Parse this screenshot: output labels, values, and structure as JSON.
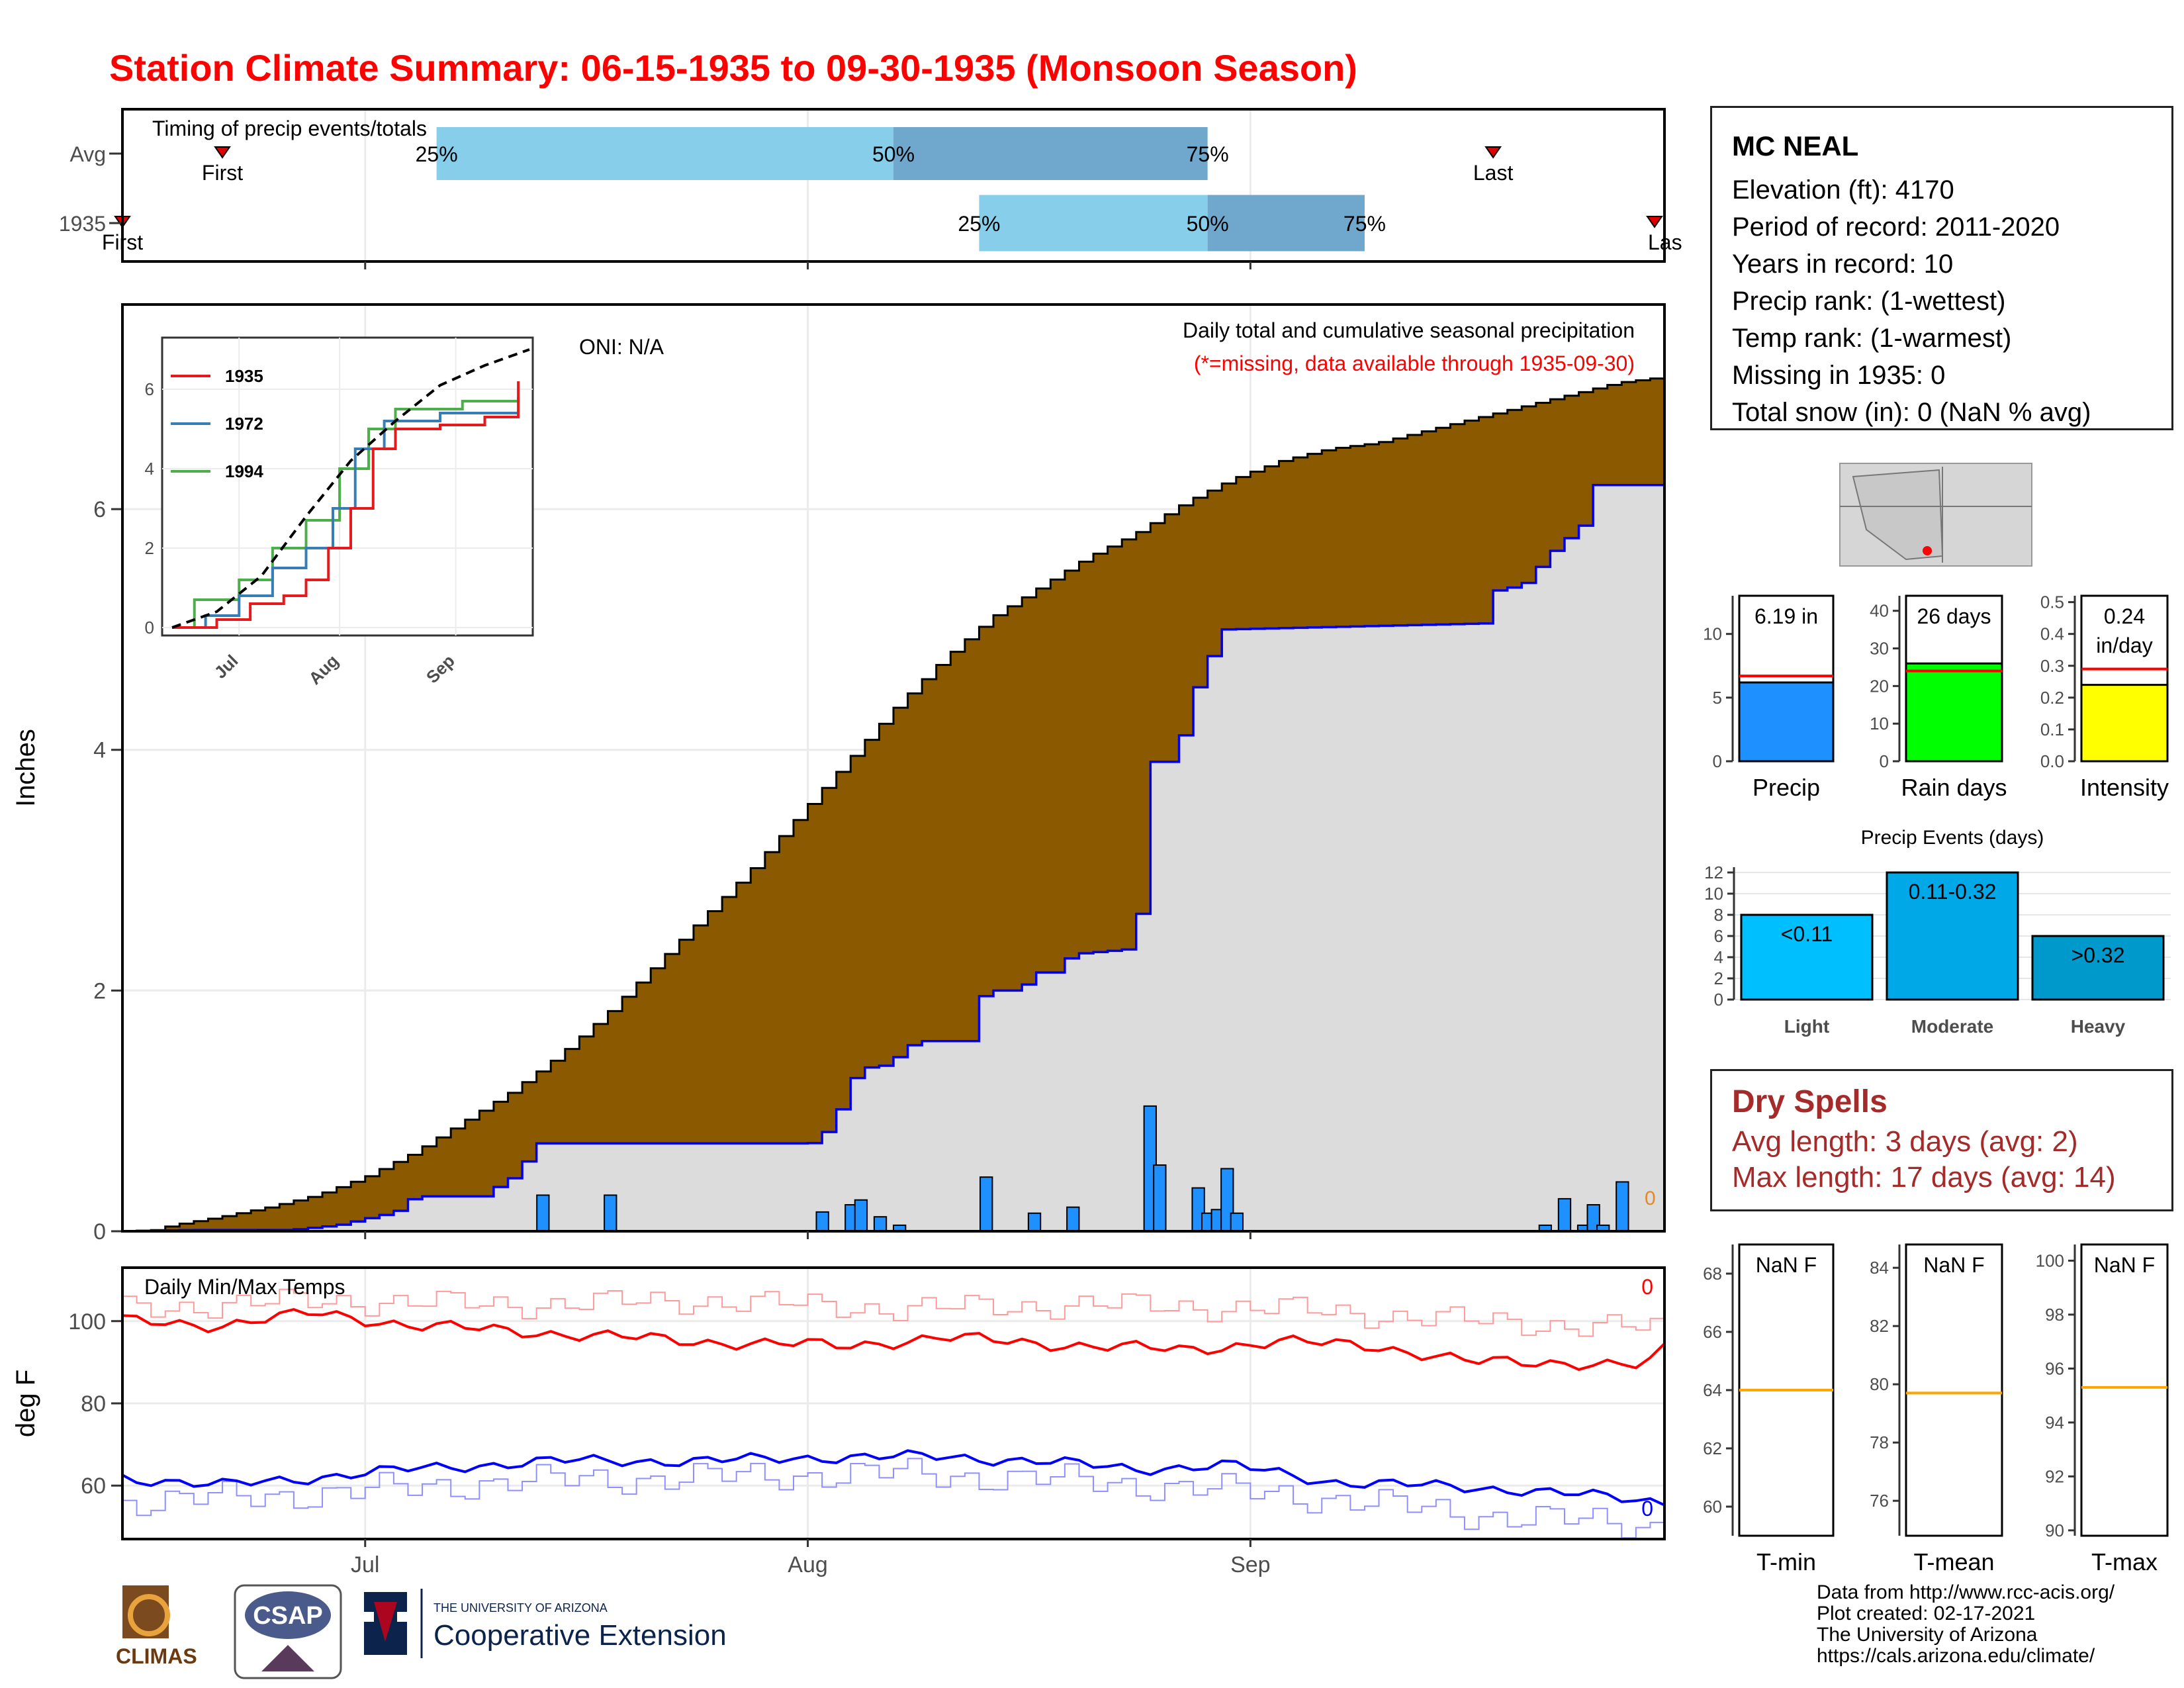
{
  "title": "Station Climate Summary: 06-15-1935 to 09-30-1935 (Monsoon Season)",
  "station": {
    "name": "MC NEAL",
    "lines": [
      "Elevation (ft): 4170",
      "Period of record: 2011-2020",
      "Years in record: 10",
      "Precip rank:  (1-wettest)",
      "Temp rank:  (1-warmest)",
      "Missing in 1935: 0",
      "Total snow (in): 0 (NaN % avg)"
    ]
  },
  "dry_spells": {
    "title": "Dry Spells",
    "avg_line": "Avg length: 3 days (avg: 2)",
    "max_line": "Max length: 17 days (avg: 14)"
  },
  "credits": [
    "Data from http://www.rcc-acis.org/",
    "Plot created: 02-17-2021",
    "The University of Arizona",
    "https://cals.arizona.edu/climate/"
  ],
  "logos": {
    "climas": "CLIMAS",
    "csap": "CSAP",
    "ua_small": "THE UNIVERSITY OF ARIZONA",
    "ua_big": "Cooperative Extension"
  },
  "colors": {
    "title": "#ff0000",
    "cumulative_avg": "#8b5a00",
    "cumulative_year": "#dcdcdc",
    "daily_bar": "#1e90ff",
    "quartile_light": "#87ceeb",
    "quartile_dark": "#6fa8cc",
    "tmax": "#ff0000",
    "tmin": "#0000ff",
    "dry_text": "#a52a2a"
  },
  "chart_data": [
    {
      "type": "timeline",
      "panel": "timing",
      "title": "Timing of precip events/totals",
      "rows": [
        {
          "label": "Avg",
          "first": "06-21",
          "last": "09-18",
          "p25": "07-06",
          "p50": "08-07",
          "p75": "08-29"
        },
        {
          "label": "1935",
          "first": "06-14",
          "last": "09-30",
          "p25": "08-13",
          "p50": "08-29",
          "p75": "09-09"
        }
      ],
      "marker_labels": {
        "first": "First",
        "last": "Last",
        "last_clipped": "Las",
        "p25": "25%",
        "p50": "50%",
        "p75": "75%"
      },
      "xlim": [
        "06-15",
        "09-30"
      ]
    },
    {
      "type": "area",
      "panel": "precip",
      "title": "Daily total and cumulative seasonal precipitation",
      "subtitle": "(*=missing, data available through 1935-09-30)",
      "annotation": "ONI: N/A",
      "ylabel": "Inches",
      "ylim": [
        0,
        7.7
      ],
      "yticks": [
        0,
        2,
        4,
        6
      ],
      "xticks": [
        "Jul",
        "Aug",
        "Sep"
      ],
      "xtick_dates": [
        "07-01",
        "08-01",
        "09-01"
      ],
      "avg_cumulative_knots": [
        [
          0,
          0
        ],
        [
          3,
          0.01
        ],
        [
          5,
          0.05
        ],
        [
          10,
          0.12
        ],
        [
          15,
          0.2
        ],
        [
          20,
          0.3
        ],
        [
          25,
          0.45
        ],
        [
          30,
          0.65
        ],
        [
          35,
          0.9
        ],
        [
          40,
          1.15
        ],
        [
          45,
          1.45
        ],
        [
          50,
          1.8
        ],
        [
          55,
          2.2
        ],
        [
          60,
          2.6
        ],
        [
          65,
          3.0
        ],
        [
          70,
          3.45
        ],
        [
          75,
          3.9
        ],
        [
          80,
          4.35
        ],
        [
          85,
          4.75
        ],
        [
          90,
          5.1
        ],
        [
          95,
          5.35
        ],
        [
          100,
          5.6
        ],
        [
          105,
          5.8
        ],
        [
          110,
          6.05
        ],
        [
          115,
          6.25
        ],
        [
          120,
          6.4
        ],
        [
          125,
          6.5
        ],
        [
          130,
          6.55
        ],
        [
          135,
          6.65
        ],
        [
          140,
          6.75
        ],
        [
          145,
          6.85
        ],
        [
          150,
          6.95
        ],
        [
          155,
          7.05
        ],
        [
          160,
          7.1
        ]
      ],
      "year_cumulative_knots": [
        [
          0,
          0
        ],
        [
          6,
          0.01
        ],
        [
          17,
          0.01
        ],
        [
          22,
          0.05
        ],
        [
          28,
          0.16
        ],
        [
          30,
          0.29
        ],
        [
          38,
          0.29
        ],
        [
          39,
          0.44
        ],
        [
          41,
          0.44
        ],
        [
          42,
          0.73
        ],
        [
          71,
          0.73
        ],
        [
          72,
          0.75
        ],
        [
          74,
          1.0
        ],
        [
          76,
          1.35
        ],
        [
          79,
          1.38
        ],
        [
          82,
          1.58
        ],
        [
          88,
          1.58
        ],
        [
          89,
          2.0
        ],
        [
          93,
          2.0
        ],
        [
          94,
          2.15
        ],
        [
          97,
          2.15
        ],
        [
          98,
          2.3
        ],
        [
          105,
          2.35
        ],
        [
          106,
          3.9
        ],
        [
          109,
          3.9
        ],
        [
          110,
          4.25
        ],
        [
          111,
          4.5
        ],
        [
          113,
          4.85
        ],
        [
          114,
          5.0
        ],
        [
          141,
          5.05
        ],
        [
          142,
          5.32
        ],
        [
          145,
          5.37
        ],
        [
          147,
          5.55
        ],
        [
          149,
          5.73
        ],
        [
          151,
          5.82
        ],
        [
          152,
          6.2
        ],
        [
          155,
          6.2
        ]
      ],
      "daily_bars": [
        [
          14,
          0.01
        ],
        [
          43,
          0.3
        ],
        [
          50,
          0.3
        ],
        [
          72,
          0.16
        ],
        [
          75,
          0.22
        ],
        [
          76,
          0.26
        ],
        [
          78,
          0.12
        ],
        [
          80,
          0.05
        ],
        [
          89,
          0.45
        ],
        [
          94,
          0.15
        ],
        [
          98,
          0.2
        ],
        [
          106,
          1.04
        ],
        [
          107,
          0.55
        ],
        [
          111,
          0.36
        ],
        [
          112,
          0.15
        ],
        [
          113,
          0.18
        ],
        [
          114,
          0.52
        ],
        [
          115,
          0.15
        ],
        [
          147,
          0.05
        ],
        [
          149,
          0.27
        ],
        [
          151,
          0.05
        ],
        [
          152,
          0.22
        ],
        [
          153,
          0.05
        ],
        [
          155,
          0.41
        ]
      ],
      "end_marker": "0"
    },
    {
      "type": "line",
      "panel": "inset",
      "xticks": [
        "Jul",
        "Aug",
        "Sep"
      ],
      "yticks": [
        0,
        2,
        4,
        6
      ],
      "ylim": [
        0,
        7
      ],
      "legend": [
        "1935",
        "1972",
        "1994"
      ],
      "legend_colors": [
        "#e41a1c",
        "#377eb8",
        "#4daf4a"
      ],
      "avg_line": [
        [
          0,
          0
        ],
        [
          20,
          0.4
        ],
        [
          40,
          1.3
        ],
        [
          60,
          2.8
        ],
        [
          80,
          4.2
        ],
        [
          100,
          5.2
        ],
        [
          120,
          6.1
        ],
        [
          140,
          6.6
        ],
        [
          160,
          7.0
        ]
      ],
      "series_1935": [
        [
          0,
          0
        ],
        [
          20,
          0.2
        ],
        [
          35,
          0.6
        ],
        [
          50,
          0.8
        ],
        [
          60,
          1.2
        ],
        [
          70,
          2.0
        ],
        [
          80,
          3.0
        ],
        [
          90,
          4.5
        ],
        [
          100,
          5.0
        ],
        [
          120,
          5.1
        ],
        [
          140,
          5.3
        ],
        [
          155,
          6.2
        ]
      ],
      "series_1972": [
        [
          0,
          0
        ],
        [
          15,
          0.3
        ],
        [
          30,
          0.8
        ],
        [
          45,
          1.5
        ],
        [
          60,
          2.0
        ],
        [
          72,
          3.0
        ],
        [
          82,
          4.5
        ],
        [
          95,
          5.2
        ],
        [
          120,
          5.4
        ],
        [
          155,
          5.4
        ]
      ],
      "series_1994": [
        [
          0,
          0
        ],
        [
          10,
          0.7
        ],
        [
          30,
          1.2
        ],
        [
          45,
          2.0
        ],
        [
          60,
          2.7
        ],
        [
          75,
          4.0
        ],
        [
          88,
          5.0
        ],
        [
          100,
          5.5
        ],
        [
          130,
          5.7
        ],
        [
          155,
          5.8
        ]
      ]
    },
    {
      "type": "line",
      "panel": "temps",
      "title": "Daily Min/Max Temps",
      "ylabel": "deg F",
      "ylim": [
        47,
        113
      ],
      "yticks": [
        60,
        80,
        100
      ],
      "xticks": [
        "Jul",
        "Aug",
        "Sep"
      ],
      "tmax_knots": [
        [
          0,
          100
        ],
        [
          10,
          99
        ],
        [
          20,
          102
        ],
        [
          30,
          99
        ],
        [
          45,
          97
        ],
        [
          60,
          95
        ],
        [
          75,
          94
        ],
        [
          85,
          96
        ],
        [
          100,
          94
        ],
        [
          110,
          93
        ],
        [
          120,
          95
        ],
        [
          130,
          94
        ],
        [
          140,
          90
        ],
        [
          150,
          90
        ],
        [
          158,
          89
        ],
        [
          160,
          93
        ]
      ],
      "tmin_knots": [
        [
          0,
          62
        ],
        [
          10,
          60
        ],
        [
          20,
          62
        ],
        [
          30,
          64
        ],
        [
          45,
          66
        ],
        [
          60,
          66
        ],
        [
          75,
          67
        ],
        [
          85,
          67
        ],
        [
          95,
          66
        ],
        [
          105,
          64
        ],
        [
          115,
          65
        ],
        [
          125,
          61
        ],
        [
          135,
          60
        ],
        [
          145,
          59
        ],
        [
          155,
          57
        ],
        [
          160,
          56
        ]
      ],
      "tmax_avg_knots": [
        [
          0,
          103
        ],
        [
          20,
          105
        ],
        [
          40,
          104
        ],
        [
          60,
          105
        ],
        [
          80,
          103
        ],
        [
          100,
          104
        ],
        [
          120,
          103
        ],
        [
          140,
          100
        ],
        [
          160,
          98
        ]
      ],
      "tmin_avg_knots": [
        [
          0,
          56
        ],
        [
          20,
          58
        ],
        [
          40,
          61
        ],
        [
          60,
          62
        ],
        [
          80,
          63
        ],
        [
          100,
          61
        ],
        [
          120,
          58
        ],
        [
          140,
          53
        ],
        [
          160,
          50
        ]
      ],
      "end_marker_high": "0",
      "end_marker_low": "0"
    },
    {
      "type": "bar",
      "panel": "precip_total",
      "categories": [
        "Precip"
      ],
      "values": [
        6.19
      ],
      "avg": 6.7,
      "label": "6.19 in",
      "ylim": [
        0,
        13
      ],
      "yticks": [
        0,
        5,
        10
      ]
    },
    {
      "type": "bar",
      "panel": "rain_days",
      "categories": [
        "Rain days"
      ],
      "values": [
        26
      ],
      "avg": 24,
      "label": "26 days",
      "ylim": [
        0,
        44
      ],
      "yticks": [
        0,
        10,
        20,
        30,
        40
      ]
    },
    {
      "type": "bar",
      "panel": "intensity",
      "categories": [
        "Intensity"
      ],
      "values": [
        0.24
      ],
      "avg": 0.29,
      "label_lines": [
        "0.24",
        "in/day"
      ],
      "ylim": [
        0,
        0.52
      ],
      "yticks": [
        0.0,
        0.1,
        0.2,
        0.3,
        0.4,
        0.5
      ]
    },
    {
      "type": "bar",
      "panel": "events",
      "title": "Precip Events (days)",
      "categories": [
        "Light",
        "Moderate",
        "Heavy"
      ],
      "values": [
        8,
        12,
        6
      ],
      "labels": [
        "<0.11",
        "0.11-0.32",
        ">0.32"
      ],
      "ylim": [
        0,
        12.5
      ],
      "yticks": [
        0,
        2,
        4,
        6,
        8,
        10,
        12
      ]
    },
    {
      "type": "bar",
      "panel": "tmin_box",
      "categories": [
        "T-min"
      ],
      "label": "NaN F",
      "avg": 64.0,
      "ylim": [
        59,
        69
      ],
      "yticks": [
        60,
        62,
        64,
        66,
        68
      ]
    },
    {
      "type": "bar",
      "panel": "tmean_box",
      "categories": [
        "T-mean"
      ],
      "label": "NaN F",
      "avg": 79.7,
      "ylim": [
        74.8,
        84.8
      ],
      "yticks": [
        76,
        78,
        80,
        82,
        84
      ]
    },
    {
      "type": "bar",
      "panel": "tmax_box",
      "categories": [
        "T-max"
      ],
      "label": "NaN F",
      "avg": 95.3,
      "ylim": [
        89.8,
        100.6
      ],
      "yticks": [
        90,
        92,
        94,
        96,
        98,
        100
      ]
    }
  ]
}
